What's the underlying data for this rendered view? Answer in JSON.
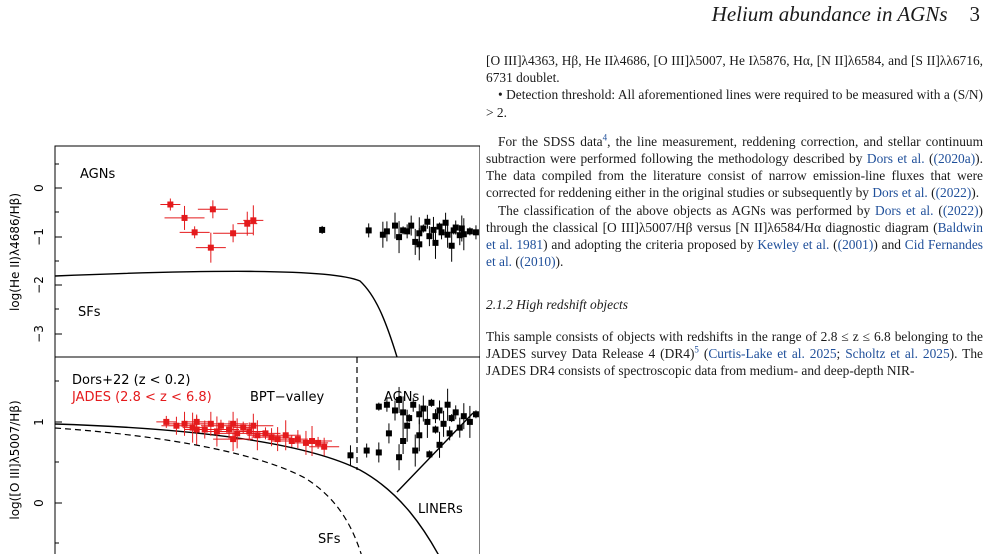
{
  "header": {
    "running_title": "Helium abundance in AGNs",
    "page_number": "3"
  },
  "figure": {
    "top": {
      "ylabel": "log(He II)λ4686/Hβ)",
      "ytick_labels": [
        "0",
        "−1",
        "−2",
        "−3"
      ],
      "label_agn": "AGNs",
      "label_sf": "SFs"
    },
    "bottom": {
      "ylabel": "log([O III]λ5007/Hβ)",
      "ytick_labels": [
        "1",
        "0"
      ],
      "legend_dors": "Dors+22 (z < 0.2)",
      "legend_jades": "JADES (2.8 < z < 6.8)",
      "label_valley": "BPT−valley",
      "label_agn": "AGNs",
      "label_liner": "LINERs",
      "label_sf": "SFs"
    },
    "colors": {
      "dors": "#000000",
      "jades": "#e41a1c"
    }
  },
  "chart_data": [
    {
      "type": "scatter",
      "xlabel": "",
      "ylabel": "log(He II)λ4686/Hβ)",
      "ylim": [
        -3.6,
        0.8
      ],
      "xlim": [
        -1.6,
        0.5
      ],
      "series": [
        {
          "name": "JADES (2.8 < z < 6.8)",
          "color": "#e41a1c",
          "points": [
            [
              -1.03,
              -0.42
            ],
            [
              -0.82,
              -0.52
            ],
            [
              -0.96,
              -0.7
            ],
            [
              -0.62,
              -0.75
            ],
            [
              -0.91,
              -1.0
            ],
            [
              -0.72,
              -1.02
            ],
            [
              -0.65,
              -0.82
            ],
            [
              -0.83,
              -1.32
            ]
          ]
        },
        {
          "name": "Dors+22 (z < 0.2)",
          "color": "#000000",
          "points": [
            [
              -0.28,
              -0.95
            ],
            [
              -0.05,
              -0.96
            ],
            [
              0.04,
              -0.98
            ],
            [
              0.08,
              -0.86
            ],
            [
              0.1,
              -1.1
            ],
            [
              0.12,
              -0.96
            ],
            [
              0.14,
              -0.98
            ],
            [
              0.16,
              -0.86
            ],
            [
              0.18,
              -1.2
            ],
            [
              0.2,
              -1.02
            ],
            [
              0.22,
              -0.92
            ],
            [
              0.24,
              -0.78
            ],
            [
              0.25,
              -1.08
            ],
            [
              0.27,
              -0.95
            ],
            [
              0.28,
              -1.22
            ],
            [
              0.3,
              -0.88
            ],
            [
              0.31,
              -1.0
            ],
            [
              0.33,
              -0.8
            ],
            [
              0.34,
              -1.05
            ],
            [
              0.36,
              -1.28
            ],
            [
              0.37,
              -0.96
            ],
            [
              0.38,
              -0.9
            ],
            [
              0.4,
              -1.06
            ],
            [
              0.41,
              -0.92
            ],
            [
              0.42,
              -1.04
            ],
            [
              0.45,
              -0.98
            ],
            [
              0.48,
              -1.0
            ],
            [
              0.55,
              -1.15
            ],
            [
              0.02,
              -1.05
            ],
            [
              0.2,
              -1.25
            ]
          ]
        }
      ]
    },
    {
      "type": "scatter",
      "xlabel": "",
      "ylabel": "log([O III]λ5007/Hβ)",
      "ylim": [
        -0.6,
        1.6
      ],
      "xlim": [
        -1.6,
        0.5
      ],
      "series": [
        {
          "name": "JADES (2.8 < z < 6.8)",
          "color": "#e41a1c",
          "points": [
            [
              -1.05,
              0.92
            ],
            [
              -1.0,
              0.88
            ],
            [
              -0.96,
              0.9
            ],
            [
              -0.92,
              0.86
            ],
            [
              -0.9,
              0.92
            ],
            [
              -0.86,
              0.84
            ],
            [
              -0.83,
              0.9
            ],
            [
              -0.8,
              0.82
            ],
            [
              -0.78,
              0.88
            ],
            [
              -0.74,
              0.84
            ],
            [
              -0.72,
              0.9
            ],
            [
              -0.7,
              0.8
            ],
            [
              -0.67,
              0.86
            ],
            [
              -0.64,
              0.82
            ],
            [
              -0.62,
              0.88
            ],
            [
              -0.6,
              0.78
            ],
            [
              -0.56,
              0.8
            ],
            [
              -0.53,
              0.76
            ],
            [
              -0.5,
              0.74
            ],
            [
              -0.46,
              0.78
            ],
            [
              -0.43,
              0.72
            ],
            [
              -0.4,
              0.74
            ],
            [
              -0.36,
              0.7
            ],
            [
              -0.33,
              0.72
            ],
            [
              -0.3,
              0.7
            ],
            [
              -0.27,
              0.66
            ],
            [
              -0.72,
              0.74
            ],
            [
              -0.9,
              0.84
            ]
          ]
        },
        {
          "name": "Dors+22 (z < 0.2)",
          "color": "#000000",
          "points": [
            [
              0.0,
              1.08
            ],
            [
              0.04,
              1.1
            ],
            [
              0.08,
              1.04
            ],
            [
              0.1,
              1.15
            ],
            [
              0.12,
              1.02
            ],
            [
              0.15,
              0.96
            ],
            [
              0.17,
              1.1
            ],
            [
              0.2,
              1.0
            ],
            [
              0.22,
              1.06
            ],
            [
              0.24,
              0.92
            ],
            [
              0.26,
              1.12
            ],
            [
              0.28,
              0.98
            ],
            [
              0.3,
              1.04
            ],
            [
              0.32,
              0.9
            ],
            [
              0.34,
              1.1
            ],
            [
              0.36,
              0.96
            ],
            [
              0.38,
              1.02
            ],
            [
              0.4,
              0.86
            ],
            [
              0.42,
              0.98
            ],
            [
              0.45,
              0.92
            ],
            [
              0.48,
              1.0
            ],
            [
              0.52,
              1.14
            ],
            [
              0.05,
              0.8
            ],
            [
              0.12,
              0.72
            ],
            [
              0.2,
              0.78
            ],
            [
              0.28,
              0.84
            ],
            [
              0.35,
              0.8
            ],
            [
              0.0,
              0.6
            ],
            [
              0.1,
              0.55
            ],
            [
              0.18,
              0.62
            ],
            [
              0.25,
              0.58
            ],
            [
              -0.06,
              0.62
            ],
            [
              -0.14,
              0.57
            ],
            [
              0.3,
              0.68
            ],
            [
              0.14,
              0.88
            ]
          ]
        }
      ]
    }
  ],
  "text": {
    "p1": "[O III]λ4363, Hβ, He IIλ4686, [O III]λ5007, He Iλ5876, Hα, [N II]λ6584, and [S II]λλ6716, 6731 doublet.",
    "p2": "• Detection threshold: All aforementioned lines were required to be measured with a (S/N) > 2.",
    "p3": {
      "a": "For the SDSS data",
      "sup": "4",
      "b": ", the line measurement, reddening correction, and stellar continuum subtraction were performed following the methodology described by ",
      "c1": "Dors et al.",
      "c1y": "(2020a)",
      "d": ". The data compiled from the literature consist of narrow emission-line fluxes that were corrected for reddening either in the original studies or subsequently by ",
      "c2": "Dors et al.",
      "c2y": "(2022)",
      "e": "."
    },
    "p4": {
      "a": "The classification of the above objects as AGNs was performed by ",
      "c1": "Dors et al.",
      "c1y": "(2022)",
      "b": " through the classical [O III]λ5007/Hβ versus [N II]λ6584/Hα diagnostic diagram (",
      "c2": "Baldwin et al. 1981",
      "c": ") and adopting the criteria proposed by ",
      "c3": "Kewley et al.",
      "c3y": "(2001)",
      "d": " and ",
      "c4": "Cid Fernandes et al.",
      "c4y": "(2010)",
      "e": "."
    },
    "subsection": "2.1.2  High redshift objects",
    "p5": {
      "a": "This sample consists of objects with redshifts in the range of 2.8 ≤ z ≤ 6.8 belonging to the JADES survey Data Release 4 (DR4)",
      "sup": "5",
      "b": " (",
      "c1": "Curtis-Lake et al. 2025",
      "sep": "; ",
      "c2": "Scholtz et al. 2025",
      "c": "). The JADES DR4 consists of spectroscopic data from medium- and deep-depth NIR-"
    }
  }
}
